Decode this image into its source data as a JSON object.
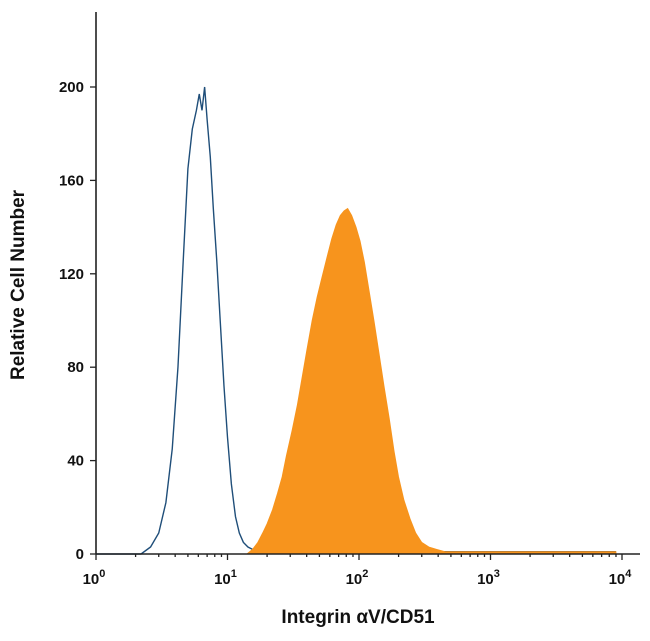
{
  "chart_data": {
    "type": "area",
    "xlabel": "Integrin αV/CD51",
    "ylabel": "Relative Cell Number",
    "xscale": "log",
    "xlim": [
      1,
      10000
    ],
    "ylim": [
      0,
      225
    ],
    "x_ticks": [
      {
        "value": 1,
        "base": "10",
        "exp": "0"
      },
      {
        "value": 10,
        "base": "10",
        "exp": "1"
      },
      {
        "value": 100,
        "base": "10",
        "exp": "2"
      },
      {
        "value": 1000,
        "base": "10",
        "exp": "3"
      },
      {
        "value": 10000,
        "base": "10",
        "exp": "4"
      }
    ],
    "y_ticks": [
      {
        "value": 0,
        "label": "0"
      },
      {
        "value": 40,
        "label": "40"
      },
      {
        "value": 80,
        "label": "80"
      },
      {
        "value": 120,
        "label": "120"
      },
      {
        "value": 160,
        "label": "160"
      },
      {
        "value": 200,
        "label": "200"
      }
    ],
    "grid": false,
    "legend": "none",
    "series": [
      {
        "style": "outline",
        "color": "#1f4e79",
        "x": [
          1,
          2.2,
          2.6,
          3.0,
          3.4,
          3.8,
          4.2,
          4.6,
          5.0,
          5.4,
          5.8,
          6.1,
          6.4,
          6.7,
          7.0,
          7.4,
          7.8,
          8.3,
          8.8,
          9.4,
          10.0,
          10.7,
          11.5,
          12.3,
          13.2,
          14.3,
          15.5,
          17.5,
          20,
          30,
          50,
          80,
          150,
          300,
          800,
          2000,
          5000,
          9000
        ],
        "y": [
          0,
          0,
          3,
          9,
          22,
          45,
          80,
          125,
          165,
          182,
          190,
          197,
          190,
          200,
          186,
          170,
          148,
          125,
          100,
          72,
          50,
          30,
          16,
          9,
          5,
          3,
          2,
          1,
          1,
          1,
          1,
          1,
          1,
          1,
          1,
          1,
          1,
          1
        ]
      },
      {
        "style": "filled",
        "color": "#f7941d",
        "x": [
          1,
          14,
          15.5,
          17,
          18.5,
          20,
          22,
          24,
          26,
          28,
          31,
          34,
          37,
          40,
          44,
          48,
          52,
          57,
          62,
          67,
          72,
          77,
          82,
          88,
          95,
          102,
          110,
          120,
          130,
          142,
          155,
          170,
          185,
          200,
          220,
          245,
          270,
          300,
          340,
          390,
          450,
          600,
          1000,
          2000,
          5000,
          9000
        ],
        "y": [
          0,
          0,
          2,
          5,
          9,
          13,
          19,
          26,
          33,
          42,
          53,
          64,
          76,
          87,
          100,
          110,
          118,
          127,
          135,
          141,
          145,
          147,
          148,
          145,
          140,
          134,
          125,
          112,
          100,
          86,
          72,
          58,
          44,
          33,
          23,
          15,
          9,
          5,
          3,
          2,
          1,
          1,
          1,
          1,
          1,
          1
        ]
      }
    ]
  }
}
